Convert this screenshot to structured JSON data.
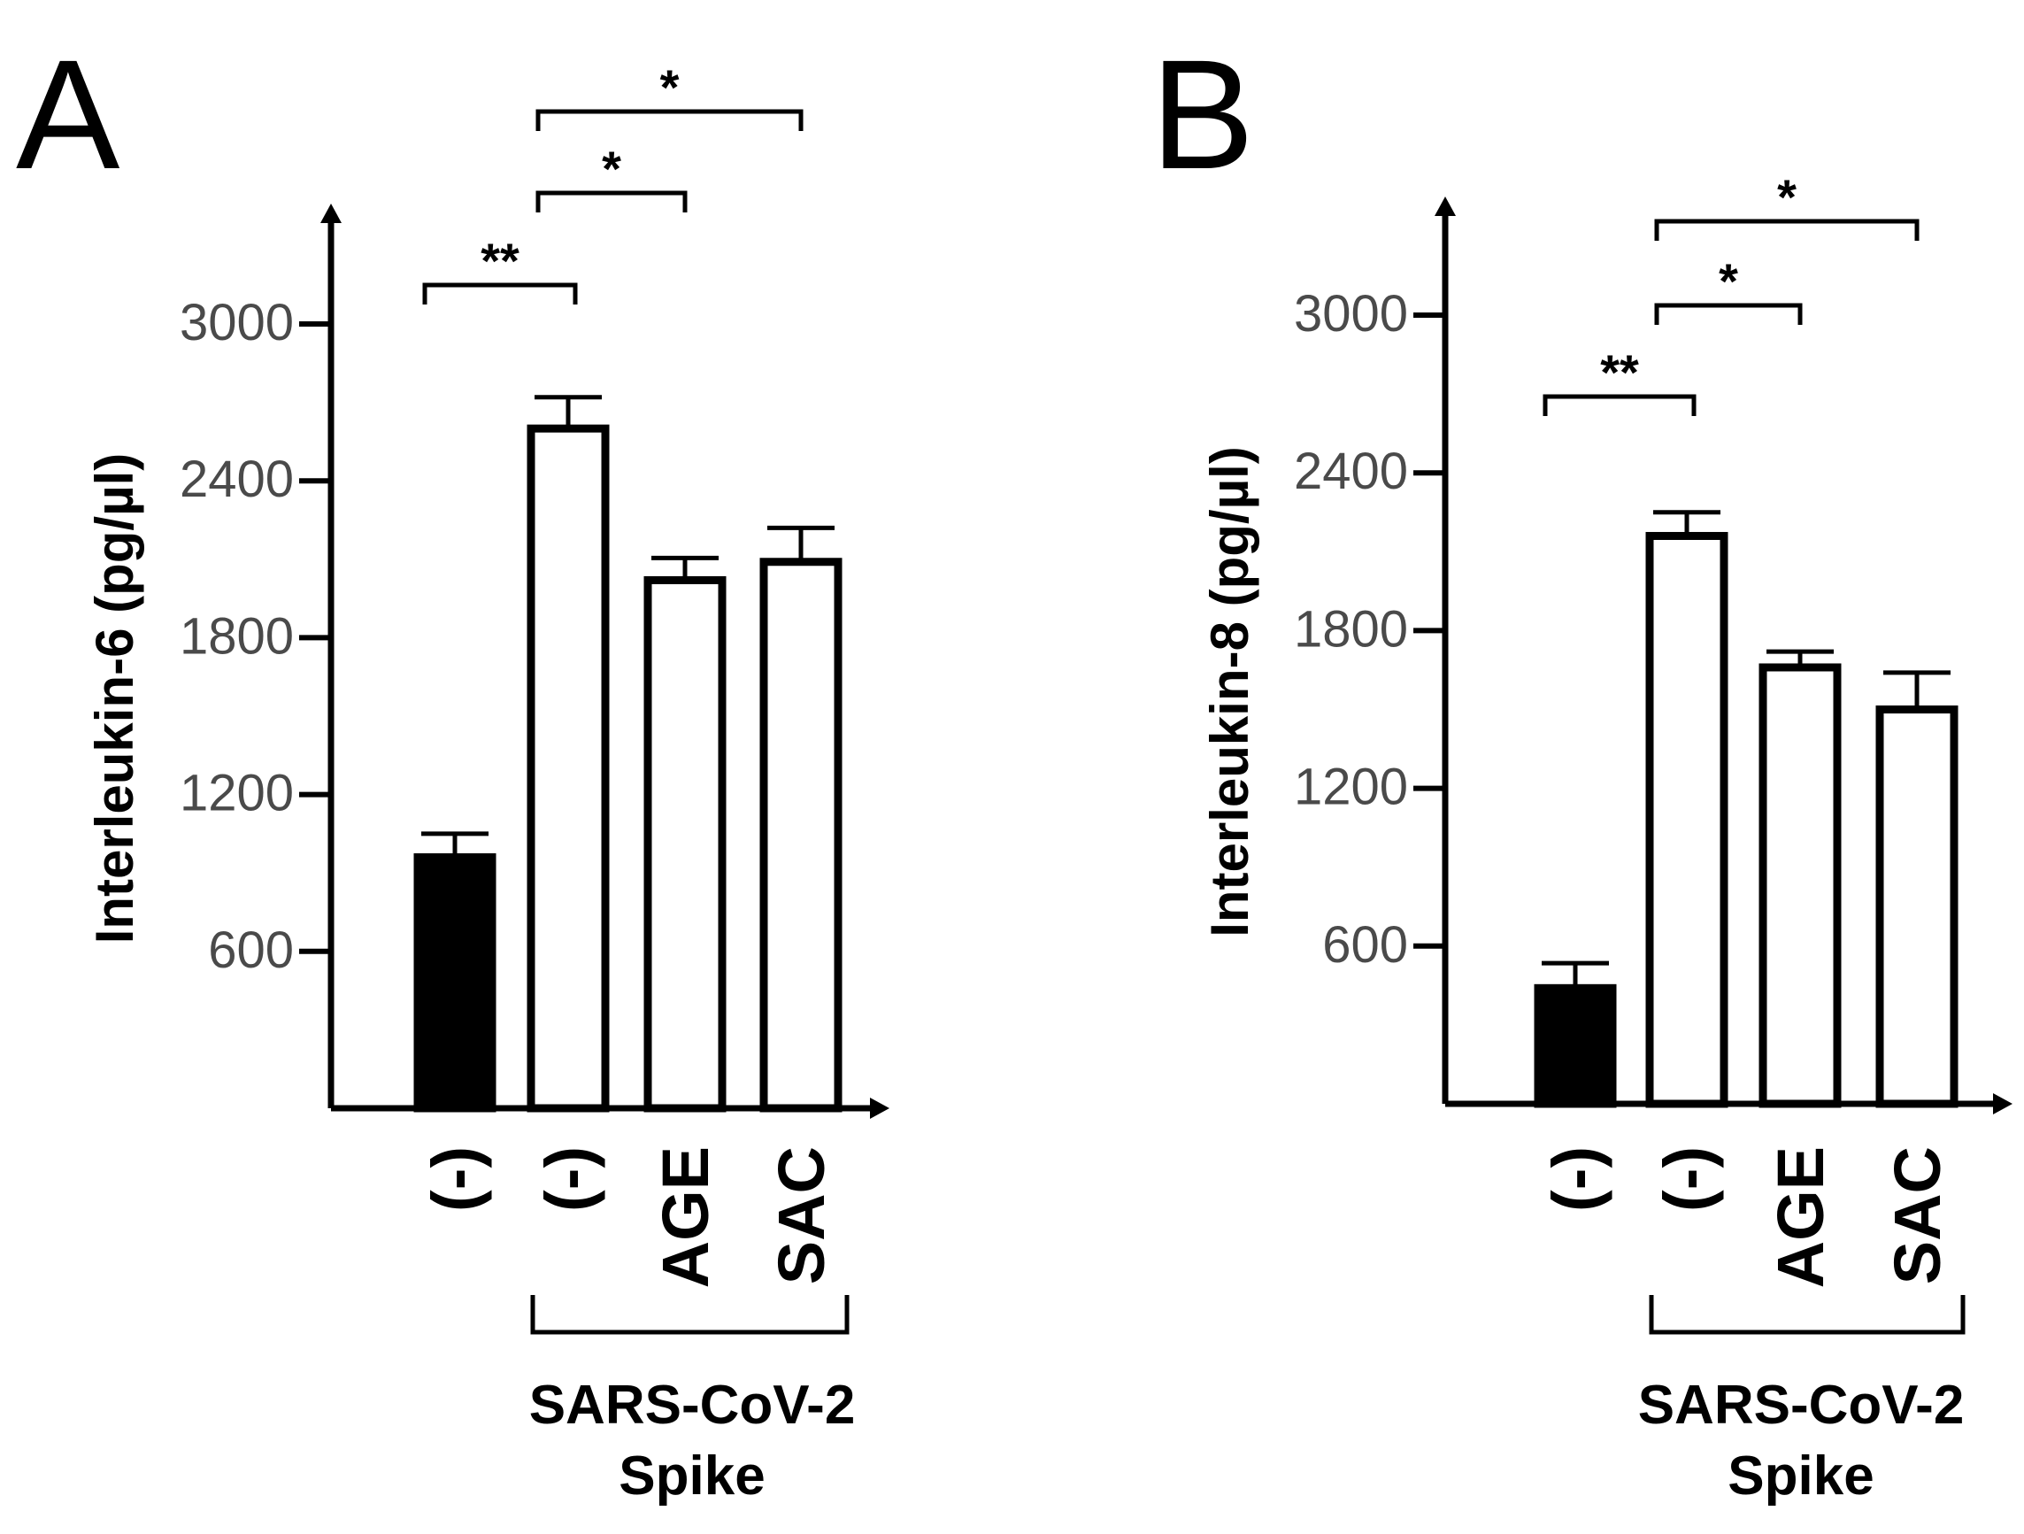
{
  "chart_data": [
    {
      "panel": "A",
      "type": "bar",
      "ylabel": "Interleukin-6 (pg/µl)",
      "yticks": [
        600,
        1200,
        1800,
        2400,
        3000
      ],
      "ylim": [
        0,
        3000
      ],
      "categories": [
        "(-)",
        "(-)",
        "AGE",
        "SAC"
      ],
      "values": [
        960,
        2600,
        2020,
        2090
      ],
      "errors": [
        90,
        120,
        85,
        130
      ],
      "bar_fills": [
        "#000000",
        "#ffffff",
        "#ffffff",
        "#ffffff"
      ],
      "group_bracket": {
        "from": 1,
        "to": 3,
        "label_lines": [
          "SARS-CoV-2",
          "Spike"
        ]
      },
      "significance": [
        {
          "from": 0,
          "to": 1,
          "label": "**"
        },
        {
          "from": 1,
          "to": 2,
          "label": "*"
        },
        {
          "from": 1,
          "to": 3,
          "label": "*"
        }
      ]
    },
    {
      "panel": "B",
      "type": "bar",
      "ylabel": "Interleukin-8 (pg/µl)",
      "yticks": [
        600,
        1200,
        1800,
        2400,
        3000
      ],
      "ylim": [
        0,
        3000
      ],
      "categories": [
        "(-)",
        "(-)",
        "AGE",
        "SAC"
      ],
      "values": [
        440,
        2160,
        1660,
        1500
      ],
      "errors": [
        95,
        90,
        60,
        140
      ],
      "bar_fills": [
        "#000000",
        "#ffffff",
        "#ffffff",
        "#ffffff"
      ],
      "group_bracket": {
        "from": 1,
        "to": 3,
        "label_lines": [
          "SARS-CoV-2",
          "Spike"
        ]
      },
      "significance": [
        {
          "from": 0,
          "to": 1,
          "label": "**"
        },
        {
          "from": 1,
          "to": 2,
          "label": "*"
        },
        {
          "from": 1,
          "to": 3,
          "label": "*"
        }
      ]
    }
  ]
}
